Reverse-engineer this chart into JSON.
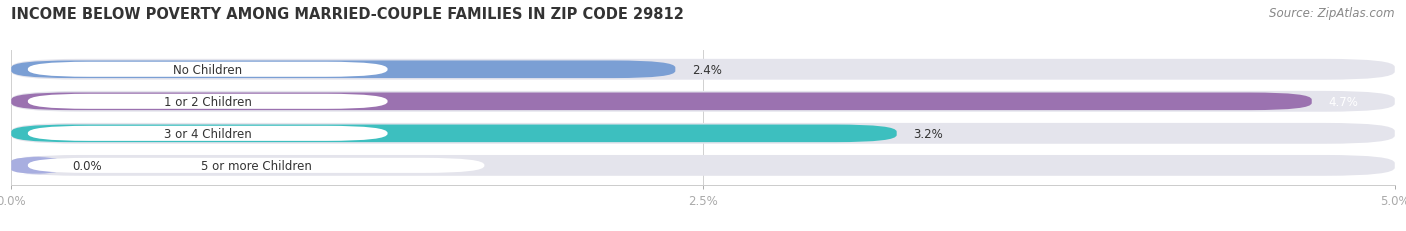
{
  "title": "INCOME BELOW POVERTY AMONG MARRIED-COUPLE FAMILIES IN ZIP CODE 29812",
  "source": "Source: ZipAtlas.com",
  "categories": [
    "No Children",
    "1 or 2 Children",
    "3 or 4 Children",
    "5 or more Children"
  ],
  "values": [
    2.4,
    4.7,
    3.2,
    0.0
  ],
  "bar_colors": [
    "#7b9fd4",
    "#9b72b0",
    "#3dbfbf",
    "#a8aee0"
  ],
  "bar_bg_color": "#e4e4ec",
  "xlim": [
    0,
    5.0
  ],
  "xticks": [
    0.0,
    2.5,
    5.0
  ],
  "xticklabels": [
    "0.0%",
    "2.5%",
    "5.0%"
  ],
  "title_fontsize": 10.5,
  "source_fontsize": 8.5,
  "bar_label_fontsize": 8.5,
  "value_label_fontsize": 8.5,
  "figsize": [
    14.06,
    2.32
  ],
  "dpi": 100
}
